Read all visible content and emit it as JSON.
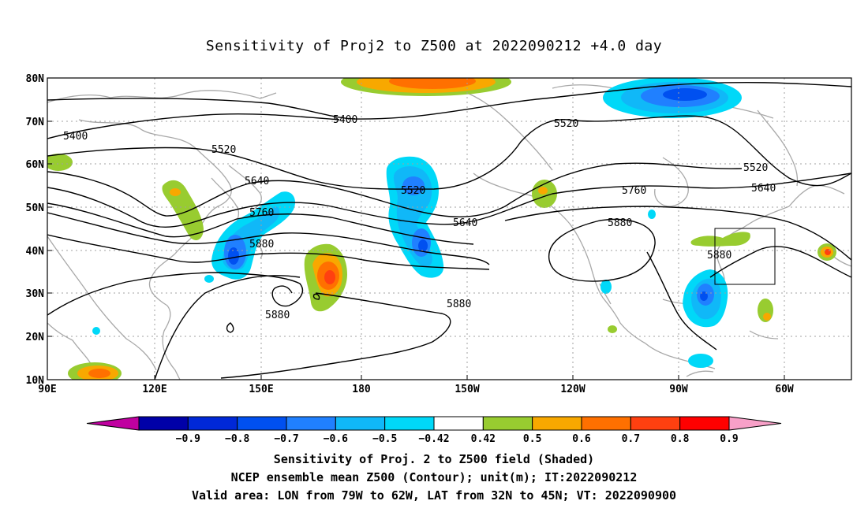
{
  "title": "Sensitivity of Proj2 to Z500 at 2022090212 +4.0 day",
  "map": {
    "lat_ticks": [
      "80N",
      "70N",
      "60N",
      "50N",
      "40N",
      "30N",
      "20N",
      "10N"
    ],
    "lon_ticks": [
      "90E",
      "120E",
      "150E",
      "180",
      "150W",
      "120W",
      "90W",
      "60W"
    ],
    "contour_labels": [
      "5400",
      "5400",
      "5520",
      "5520",
      "5520",
      "5520",
      "5640",
      "5640",
      "5640",
      "5760",
      "5760",
      "5880",
      "5880",
      "5880",
      "5880",
      "5880"
    ],
    "valid_box": {
      "lon_from": "79W",
      "lon_to": "62W",
      "lat_from": "32N",
      "lat_to": "45N"
    }
  },
  "colorbar": {
    "labels": [
      "-0.9",
      "-0.8",
      "-0.7",
      "-0.6",
      "-0.5",
      "-0.42",
      "0.42",
      "0.5",
      "0.6",
      "0.7",
      "0.8",
      "0.9"
    ],
    "colors": [
      "#c000a0",
      "#0000a8",
      "#0028d8",
      "#0050f0",
      "#2080ff",
      "#10b8f8",
      "#00d8f8",
      "#ffffff",
      "#98cc30",
      "#f8a800",
      "#ff7000",
      "#ff4010",
      "#ff0000",
      "#f8a0c8"
    ]
  },
  "captions": {
    "line1": "Sensitivity of Proj. 2 to Z500 field (Shaded)",
    "line2": "NCEP ensemble mean Z500 (Contour); unit(m); IT:2022090212",
    "line3": "Valid area: LON from 79W to 62W, LAT from 32N to 45N; VT: 2022090900"
  }
}
